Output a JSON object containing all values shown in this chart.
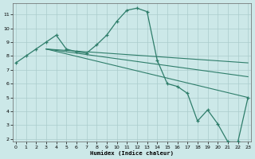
{
  "background_color": "#cce8e8",
  "grid_color": "#aacccc",
  "line_color": "#2e7d6a",
  "xlim": [
    -0.3,
    23.3
  ],
  "ylim": [
    1.8,
    11.8
  ],
  "yticks": [
    2,
    3,
    4,
    5,
    6,
    7,
    8,
    9,
    10,
    11
  ],
  "xticks": [
    0,
    1,
    2,
    3,
    4,
    5,
    6,
    7,
    8,
    9,
    10,
    11,
    12,
    13,
    14,
    15,
    16,
    17,
    18,
    19,
    20,
    21,
    22,
    23
  ],
  "xlabel": "Humidex (Indice chaleur)",
  "main_x": [
    0,
    1,
    2,
    3,
    4,
    5,
    6,
    7,
    8,
    9,
    10,
    11,
    12,
    13,
    14,
    15,
    16,
    17,
    18,
    19,
    20,
    21,
    22,
    23
  ],
  "main_y": [
    7.5,
    8.0,
    8.5,
    9.0,
    9.5,
    8.5,
    8.3,
    8.2,
    8.8,
    9.5,
    10.5,
    11.3,
    11.45,
    11.2,
    7.7,
    6.0,
    5.8,
    5.3,
    3.3,
    4.1,
    3.1,
    1.8,
    1.8,
    5.0
  ],
  "fan_start_x": 3,
  "fan_start_y": 8.5,
  "fan_line1_end_x": 23,
  "fan_line1_end_y": 5.0,
  "fan_line2_end_x": 23,
  "fan_line2_end_y": 6.5,
  "fan_line3_end_x": 23,
  "fan_line3_end_y": 7.5
}
